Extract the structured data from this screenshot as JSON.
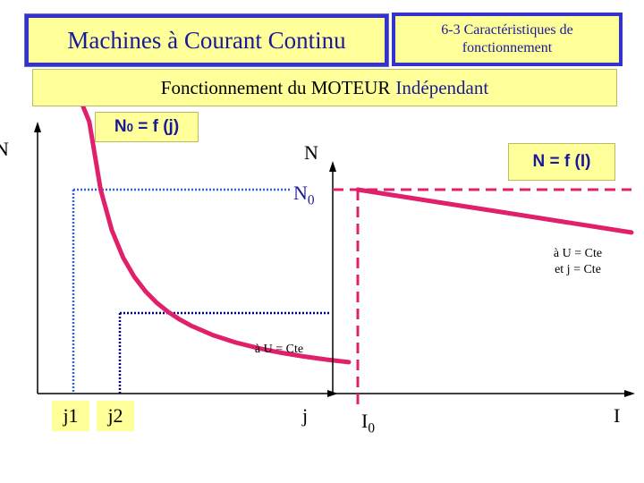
{
  "header": {
    "title": "Machines à Courant Continu",
    "section": "6-3 Caractéristiques de\nfonctionnement"
  },
  "subtitle": {
    "text": "Fonctionnement du MOTEUR",
    "accent": "Indépendant"
  },
  "chart_data": [
    {
      "type": "line",
      "title": "N0 = f (j)",
      "title_main": "N",
      "title_sub": "0",
      "title_rest": " = f (j)",
      "ylabel": "N",
      "xlabel": "j",
      "y_axis_label": "N",
      "x_tick_labels": [
        "j1",
        "j2"
      ],
      "y_marker": {
        "main": "N",
        "sub": "0"
      },
      "note": "à U = Cte",
      "curve_color": "#e0206a",
      "guide_colors": [
        "#3366cc",
        "#000080"
      ],
      "series": [
        {
          "x": [
            0.1,
            0.2,
            0.3,
            0.4,
            0.5,
            0.6,
            0.7,
            0.8,
            0.9,
            1.0,
            1.1,
            1.2,
            1.4,
            1.6,
            1.8,
            2.0,
            2.2,
            2.4,
            2.6
          ],
          "y": [
            10.0,
            5.0,
            3.333,
            2.5,
            2.0,
            1.667,
            1.429,
            1.25,
            1.111,
            1.0,
            0.909,
            0.833,
            0.714,
            0.625,
            0.556,
            0.5,
            0.455,
            0.417,
            0.385
          ]
        }
      ],
      "guides": [
        {
          "x": 0.4,
          "y": 2.5
        },
        {
          "x": 0.8,
          "y": 1.25
        }
      ]
    },
    {
      "type": "line",
      "title": "N = f (I)",
      "ylabel": "N",
      "xlabel": "I",
      "x_marker": {
        "main": "I",
        "sub": "0"
      },
      "note": "à U = Cte\net j = Cte",
      "curve_color": "#e0206a",
      "guide_color": "#e0206a",
      "series": [
        {
          "x": [
            1.0,
            2.0,
            3.0,
            4.0,
            5.0,
            6.0,
            7.0
          ],
          "y": [
            1.0,
            0.965,
            0.93,
            0.895,
            0.86,
            0.825,
            0.79
          ]
        }
      ]
    }
  ]
}
